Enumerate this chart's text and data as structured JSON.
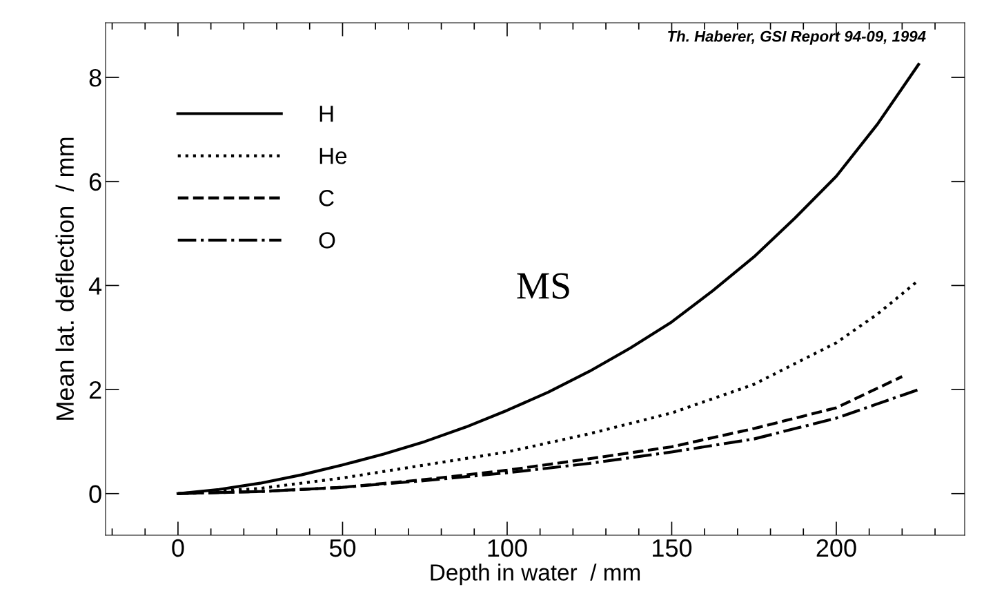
{
  "chart_data": {
    "type": "line",
    "xlabel": "Depth in water  / mm",
    "ylabel": "Mean lat. deflection  / mm",
    "xlim": [
      -22,
      239
    ],
    "xticks": [
      0,
      50,
      100,
      150,
      200
    ],
    "ylim": [
      -0.8,
      9.05
    ],
    "yticks": [
      0,
      2,
      4,
      6,
      8
    ],
    "legend": "top left",
    "grid": false,
    "marker": "none",
    "annotations": [
      {
        "text": "MS"
      },
      {
        "text": "Th. Haberer, GSI Report 94-09, 1994"
      }
    ],
    "series": [
      {
        "name": "H",
        "color": "#000000",
        "line_style": "solid",
        "x": [
          0,
          12.5,
          25,
          37.5,
          50,
          62.5,
          75,
          87.5,
          100,
          112.5,
          125,
          137.5,
          150,
          162.5,
          175,
          187.5,
          200,
          212.5,
          225
        ],
        "values": [
          0,
          0.08,
          0.2,
          0.36,
          0.55,
          0.76,
          1.0,
          1.28,
          1.6,
          1.95,
          2.35,
          2.8,
          3.3,
          3.9,
          4.55,
          5.3,
          6.1,
          7.1,
          8.25
        ]
      },
      {
        "name": "He",
        "color": "#000000",
        "line_style": "dotted",
        "x": [
          0,
          25,
          50,
          75,
          100,
          125,
          150,
          175,
          200,
          212.5,
          225
        ],
        "values": [
          0,
          0.1,
          0.3,
          0.55,
          0.8,
          1.15,
          1.55,
          2.1,
          2.9,
          3.45,
          4.1
        ]
      },
      {
        "name": "C",
        "color": "#000000",
        "line_style": "dashed",
        "x": [
          0,
          25,
          50,
          75,
          100,
          125,
          150,
          175,
          200,
          220
        ],
        "values": [
          0,
          0.04,
          0.12,
          0.27,
          0.45,
          0.67,
          0.9,
          1.25,
          1.65,
          2.25
        ]
      },
      {
        "name": "O",
        "color": "#000000",
        "line_style": "dashdot",
        "x": [
          0,
          25,
          50,
          75,
          100,
          125,
          150,
          175,
          200,
          225
        ],
        "values": [
          0,
          0.04,
          0.12,
          0.25,
          0.4,
          0.58,
          0.8,
          1.05,
          1.45,
          2.0
        ]
      }
    ]
  }
}
